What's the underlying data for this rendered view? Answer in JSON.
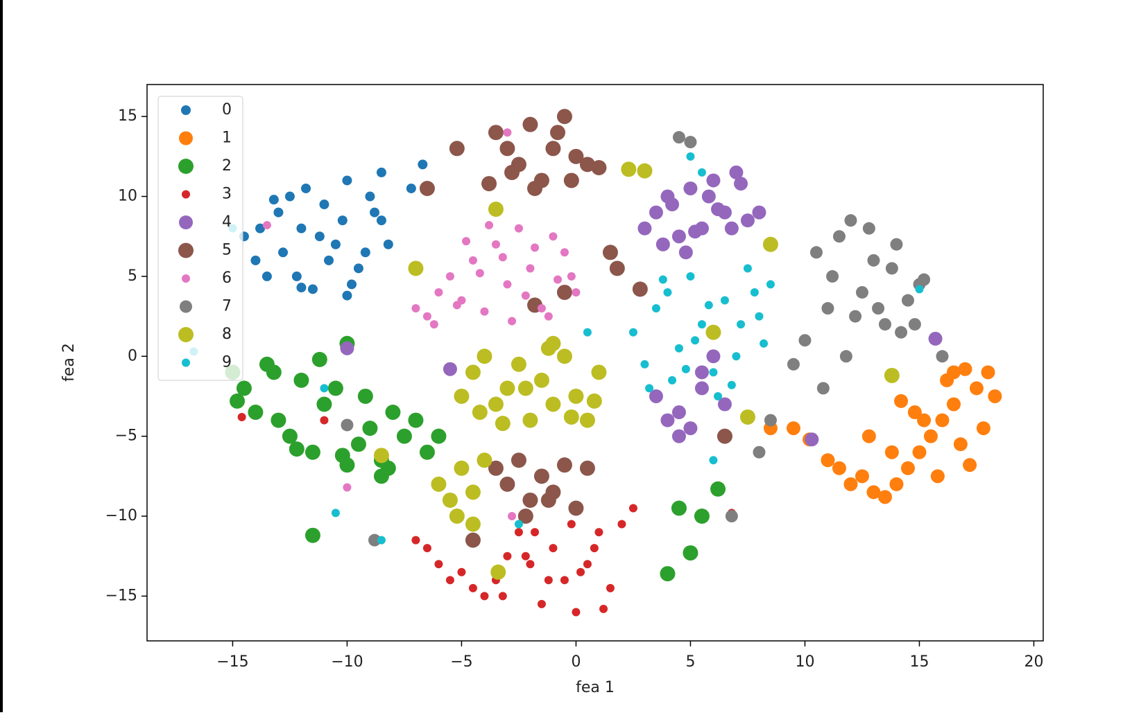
{
  "chart_data": {
    "type": "scatter",
    "xlabel": "fea 1",
    "ylabel": "fea 2",
    "xlim": [
      -18.74,
      20.41
    ],
    "ylim": [
      -17.8,
      17.0
    ],
    "xticks": [
      {
        "value": -15,
        "label": "−15"
      },
      {
        "value": -10,
        "label": "−10"
      },
      {
        "value": -5,
        "label": "−5"
      },
      0,
      5,
      10,
      15,
      20
    ],
    "yticks": [
      {
        "value": -15,
        "label": "−15"
      },
      {
        "value": -10,
        "label": "−10"
      },
      {
        "value": -5,
        "label": "−5"
      },
      0,
      5,
      10,
      15
    ],
    "legend": "upper left",
    "series": [
      {
        "name": "0",
        "color": "#1f77b4",
        "x": [
          -14.5,
          -14,
          -13.5,
          -13,
          -12.5,
          -12,
          -11.5,
          -11,
          -10.5,
          -10,
          -9.5,
          -9,
          -8.5,
          -8.2,
          -13.8,
          -12.8,
          -11.8,
          -10.8,
          -9.8,
          -8.8,
          -12.2,
          -11.2,
          -10.2,
          -9.2,
          -13.2,
          -12,
          -10,
          -8.5,
          -6.7,
          -7.2
        ],
        "values": [
          7.5,
          6,
          5,
          9,
          10,
          8,
          4.2,
          9.5,
          7,
          11,
          5.5,
          10,
          8.5,
          7,
          8,
          6.5,
          10.5,
          6,
          4.5,
          9,
          5,
          7.5,
          8.5,
          6.5,
          9.8,
          4.3,
          3.8,
          11.5,
          12,
          10.5
        ]
      },
      {
        "name": "1",
        "color": "#ff7f0e",
        "x": [
          18,
          17.5,
          17,
          16.5,
          16,
          15.5,
          15,
          14.5,
          14,
          13.5,
          13,
          12.5,
          12,
          11.5,
          11,
          18.3,
          17.8,
          16.8,
          15.8,
          14.8,
          13.8,
          12.8,
          16.2,
          15.2,
          14.2,
          17.2,
          9.5,
          8.5,
          10.2,
          16.5
        ],
        "values": [
          -1,
          -2,
          -0.8,
          -3,
          -4,
          -5,
          -6,
          -7,
          -8,
          -8.8,
          -8.5,
          -7.5,
          -8,
          -7,
          -6.5,
          -2.5,
          -4.5,
          -5.5,
          -7.5,
          -3.5,
          -6,
          -5,
          -1.5,
          -4,
          -2.8,
          -6.8,
          -4.5,
          -4.5,
          -5.2,
          -1
        ]
      },
      {
        "name": "2",
        "color": "#2ca02c",
        "x": [
          -15,
          -14.5,
          -14,
          -13.5,
          -13,
          -12.5,
          -12,
          -11.5,
          -11,
          -10.5,
          -10,
          -9.5,
          -9,
          -8.5,
          -8,
          -7.5,
          -7,
          -6.5,
          -6,
          -14.8,
          -13.2,
          -12.2,
          -11.2,
          -10.2,
          -9.2,
          -8.2,
          -10,
          -11.5,
          4.5,
          5.5,
          6.2,
          5,
          -8.5,
          4
        ],
        "values": [
          -1,
          -2,
          -3.5,
          -0.5,
          -4,
          -5,
          -1.5,
          -6,
          -3,
          -2,
          0.8,
          -5.5,
          -4.5,
          -6.5,
          -3.5,
          -5,
          -4,
          -6,
          -5,
          -2.8,
          -1,
          -5.8,
          -0.2,
          -6.2,
          -2.5,
          -7,
          -6.8,
          -11.2,
          -9.5,
          -10,
          -8.3,
          -12.3,
          -7.5,
          -13.6
        ]
      },
      {
        "name": "3",
        "color": "#d62728",
        "x": [
          -7,
          -6.5,
          -6,
          -5.5,
          -5,
          -4.5,
          -4,
          -3.5,
          -3,
          -2.5,
          -2,
          -1.5,
          -1,
          -0.5,
          0,
          0.5,
          1,
          1.5,
          2,
          2.5,
          -3.2,
          -2.2,
          -1.2,
          -0.2,
          0.8,
          1.2,
          -1.8,
          0.2,
          -14.6,
          -11,
          6.8
        ],
        "values": [
          -11.5,
          -12,
          -13,
          -14,
          -13.5,
          -14.5,
          -15,
          -14,
          -12.5,
          -11,
          -13,
          -15.5,
          -12,
          -14,
          -16,
          -13,
          -11,
          -14.5,
          -10.5,
          -9.5,
          -15,
          -12.5,
          -14,
          -10.5,
          -12,
          -15.8,
          -11,
          -13.5,
          -3.8,
          -4,
          -9.8
        ]
      },
      {
        "name": "4",
        "color": "#9467bd",
        "x": [
          3,
          3.5,
          4,
          4.5,
          5,
          5.5,
          6,
          6.5,
          7,
          7.5,
          8,
          3.8,
          4.8,
          5.8,
          6.8,
          7.2,
          4.2,
          5.2,
          6.2,
          3.5,
          4,
          4.5,
          5,
          5.5,
          6,
          6.5,
          4.5,
          5.5,
          -10,
          -5.5,
          15.7,
          10.3
        ],
        "values": [
          8,
          9,
          10,
          7.5,
          10.5,
          8,
          11,
          9,
          11.5,
          8.5,
          9,
          7,
          6.5,
          10,
          8,
          10.8,
          9.5,
          7.8,
          9.2,
          -2.5,
          -4,
          -5,
          -4.5,
          -1,
          0,
          -3,
          -3.5,
          -2,
          0.5,
          -0.8,
          1.1,
          -5.2
        ]
      },
      {
        "name": "5",
        "color": "#8c564b",
        "x": [
          -3.5,
          -3,
          -2.5,
          -2,
          -1.5,
          -1,
          -0.5,
          0,
          -3.8,
          -2.8,
          -1.8,
          -0.8,
          -0.2,
          0.5,
          1,
          -3.5,
          -3,
          -2.5,
          -2,
          -1.5,
          -1,
          -0.5,
          0,
          0.5,
          -2.2,
          -1.2,
          1.5,
          1.8,
          -0.5,
          -5.2,
          -6.5,
          2.8,
          -4.5,
          -1.8,
          6.5
        ],
        "values": [
          14,
          13,
          12,
          14.5,
          11,
          13,
          15,
          12.5,
          10.8,
          11.5,
          10.5,
          14,
          11,
          12,
          11.8,
          -7,
          -8,
          -6.5,
          -9,
          -7.5,
          -8.5,
          -6.8,
          -9.5,
          -7,
          -10,
          -9,
          6.5,
          5.5,
          4,
          13,
          10.5,
          4.2,
          -11.5,
          3.2,
          -5
        ]
      },
      {
        "name": "6",
        "color": "#e377c2",
        "x": [
          -7,
          -6.5,
          -6,
          -5.5,
          -5,
          -4.5,
          -4,
          -3.5,
          -3,
          -2.5,
          -2,
          -1.5,
          -1,
          -0.5,
          0,
          -6.2,
          -5.2,
          -4.2,
          -3.2,
          -2.2,
          -1.2,
          -0.2,
          -4.8,
          -3.8,
          -2.8,
          -1.8,
          -0.8,
          -13.5,
          -3,
          -10,
          -2.8
        ],
        "values": [
          3,
          2.5,
          4,
          5,
          3.5,
          6,
          2.8,
          7,
          4.5,
          8,
          5.5,
          3,
          7.5,
          6.5,
          4,
          2,
          3.2,
          5.2,
          6.2,
          3.8,
          2.5,
          5,
          7.2,
          8.2,
          2.2,
          6.8,
          4.8,
          8.2,
          14,
          -8.2,
          -10
        ]
      },
      {
        "name": "7",
        "color": "#7f7f7f",
        "x": [
          10.5,
          11,
          11.5,
          12,
          12.5,
          13,
          13.5,
          14,
          14.5,
          15,
          10,
          11.2,
          12.2,
          13.2,
          14.2,
          9.5,
          10.8,
          11.8,
          12.8,
          13.8,
          14.8,
          15.2,
          4.5,
          5,
          8,
          8.5,
          -10,
          -8.8,
          6.8,
          16
        ],
        "values": [
          6.5,
          3,
          7.5,
          8.5,
          4,
          6,
          2,
          7,
          3.5,
          4.5,
          1,
          5,
          2.5,
          3,
          1.5,
          -0.5,
          -2,
          0,
          8,
          5.5,
          2,
          4.8,
          13.7,
          13.4,
          -6,
          -4,
          -4.3,
          -11.5,
          -10,
          0
        ]
      },
      {
        "name": "8",
        "color": "#bcbd22",
        "x": [
          -5,
          -4.5,
          -4,
          -3.5,
          -3,
          -2.5,
          -2,
          -1.5,
          -1,
          -0.5,
          0,
          0.5,
          1,
          -4.2,
          -3.2,
          -2.2,
          -1.2,
          -0.2,
          0.8,
          -6,
          -5.5,
          -5,
          -4.5,
          -4,
          -5.2,
          -4.5,
          -7,
          -3.5,
          2.3,
          3,
          8.5,
          7.5,
          13.8,
          -8.5,
          -1,
          -3.4,
          6
        ],
        "values": [
          -2.5,
          -1,
          0,
          -3,
          -2,
          -0.5,
          -4,
          -1.5,
          -3,
          0,
          -2.5,
          -4,
          -1,
          -3.5,
          -4.2,
          -2,
          0.5,
          -3.8,
          -2.8,
          -8,
          -9,
          -7,
          -8.5,
          -6.5,
          -10,
          -10.5,
          5.5,
          9.2,
          11.7,
          11.6,
          7,
          -3.8,
          -1.2,
          -6.2,
          0.8,
          -13.5,
          1.5
        ]
      },
      {
        "name": "9",
        "color": "#17becf",
        "x": [
          2.5,
          3,
          3.5,
          4,
          4.5,
          5,
          5.5,
          6,
          6.5,
          7,
          7.5,
          8,
          8.5,
          3.2,
          4.2,
          5.2,
          6.2,
          7.2,
          8.2,
          3.8,
          4.8,
          5.8,
          6.8,
          7.8,
          5,
          5.5,
          -10.5,
          -2.5,
          -15,
          -16.7,
          15,
          0.5,
          6,
          -11,
          -8.5
        ],
        "values": [
          1.5,
          -0.5,
          3,
          4,
          0.5,
          5,
          2,
          -1,
          3.5,
          0,
          5.5,
          2.5,
          4.5,
          -2,
          -1.5,
          1,
          -2.5,
          2,
          0.8,
          4.8,
          -0.8,
          3.2,
          -1.8,
          4,
          12.5,
          11.5,
          -9.8,
          -10.5,
          8,
          0.3,
          4.2,
          1.5,
          -6.5,
          -2,
          -11.5
        ]
      }
    ]
  }
}
